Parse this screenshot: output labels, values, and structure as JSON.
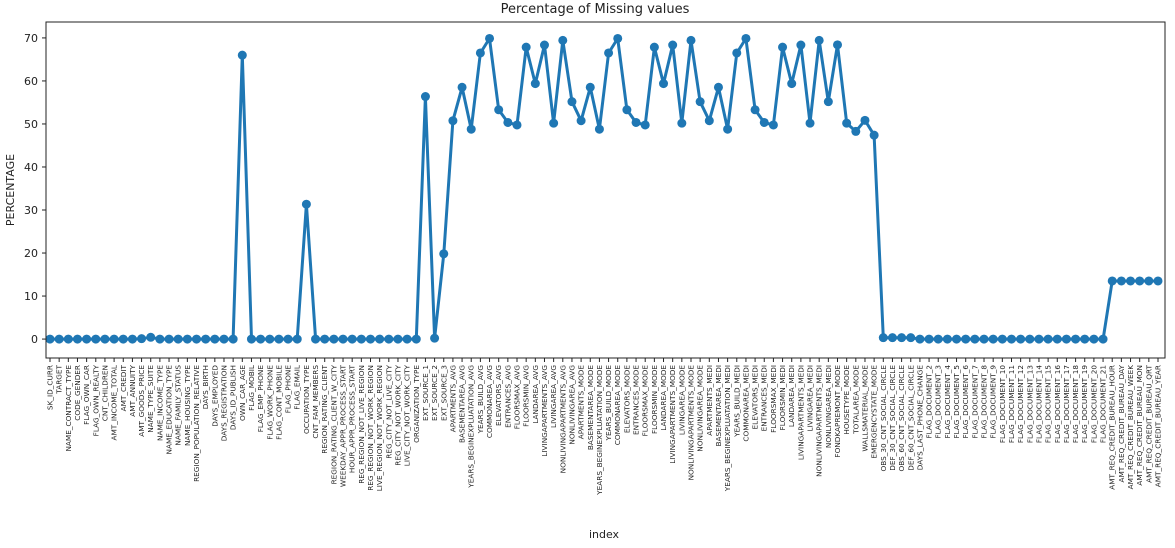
{
  "chart_data": {
    "type": "line",
    "title": "Percentage of Missing values",
    "xlabel": "index",
    "ylabel": "PERCENTAGE",
    "ylim": [
      -4.4,
      73.7
    ],
    "yticks": [
      0,
      10,
      20,
      30,
      40,
      50,
      60,
      70
    ],
    "color": "#1f77b4",
    "categories": [
      "SK_ID_CURR",
      "TARGET",
      "NAME_CONTRACT_TYPE",
      "CODE_GENDER",
      "FLAG_OWN_CAR",
      "FLAG_OWN_REALTY",
      "CNT_CHILDREN",
      "AMT_INCOME_TOTAL",
      "AMT_CREDIT",
      "AMT_ANNUITY",
      "AMT_GOODS_PRICE",
      "NAME_TYPE_SUITE",
      "NAME_INCOME_TYPE",
      "NAME_EDUCATION_TYPE",
      "NAME_FAMILY_STATUS",
      "NAME_HOUSING_TYPE",
      "REGION_POPULATION_RELATIVE",
      "DAYS_BIRTH",
      "DAYS_EMPLOYED",
      "DAYS_REGISTRATION",
      "DAYS_ID_PUBLISH",
      "OWN_CAR_AGE",
      "FLAG_MOBIL",
      "FLAG_EMP_PHONE",
      "FLAG_WORK_PHONE",
      "FLAG_CONT_MOBILE",
      "FLAG_PHONE",
      "FLAG_EMAIL",
      "OCCUPATION_TYPE",
      "CNT_FAM_MEMBERS",
      "REGION_RATING_CLIENT",
      "REGION_RATING_CLIENT_W_CITY",
      "WEEKDAY_APPR_PROCESS_START",
      "HOUR_APPR_PROCESS_START",
      "REG_REGION_NOT_LIVE_REGION",
      "REG_REGION_NOT_WORK_REGION",
      "LIVE_REGION_NOT_WORK_REGION",
      "REG_CITY_NOT_LIVE_CITY",
      "REG_CITY_NOT_WORK_CITY",
      "LIVE_CITY_NOT_WORK_CITY",
      "ORGANIZATION_TYPE",
      "EXT_SOURCE_1",
      "EXT_SOURCE_2",
      "EXT_SOURCE_3",
      "APARTMENTS_AVG",
      "BASEMENTAREA_AVG",
      "YEARS_BEGINEXPLUATATION_AVG",
      "YEARS_BUILD_AVG",
      "COMMONAREA_AVG",
      "ELEVATORS_AVG",
      "ENTRANCES_AVG",
      "FLOORSMAX_AVG",
      "FLOORSMIN_AVG",
      "LANDAREA_AVG",
      "LIVINGAPARTMENTS_AVG",
      "LIVINGAREA_AVG",
      "NONLIVINGAPARTMENTS_AVG",
      "NONLIVINGAREA_AVG",
      "APARTMENTS_MODE",
      "BASEMENTAREA_MODE",
      "YEARS_BEGINEXPLUATATION_MODE",
      "YEARS_BUILD_MODE",
      "COMMONAREA_MODE",
      "ELEVATORS_MODE",
      "ENTRANCES_MODE",
      "FLOORSMAX_MODE",
      "FLOORSMIN_MODE",
      "LANDAREA_MODE",
      "LIVINGAPARTMENTS_MODE",
      "LIVINGAREA_MODE",
      "NONLIVINGAPARTMENTS_MODE",
      "NONLIVINGAREA_MODE",
      "APARTMENTS_MEDI",
      "BASEMENTAREA_MEDI",
      "YEARS_BEGINEXPLUATATION_MEDI",
      "YEARS_BUILD_MEDI",
      "COMMONAREA_MEDI",
      "ELEVATORS_MEDI",
      "ENTRANCES_MEDI",
      "FLOORSMAX_MEDI",
      "FLOORSMIN_MEDI",
      "LANDAREA_MEDI",
      "LIVINGAPARTMENTS_MEDI",
      "LIVINGAREA_MEDI",
      "NONLIVINGAPARTMENTS_MEDI",
      "NONLIVINGAREA_MEDI",
      "FONDKAPREMONT_MODE",
      "HOUSETYPE_MODE",
      "TOTALAREA_MODE",
      "WALLSMATERIAL_MODE",
      "EMERGENCYSTATE_MODE",
      "OBS_30_CNT_SOCIAL_CIRCLE",
      "DEF_30_CNT_SOCIAL_CIRCLE",
      "OBS_60_CNT_SOCIAL_CIRCLE",
      "DEF_60_CNT_SOCIAL_CIRCLE",
      "DAYS_LAST_PHONE_CHANGE",
      "FLAG_DOCUMENT_2",
      "FLAG_DOCUMENT_3",
      "FLAG_DOCUMENT_4",
      "FLAG_DOCUMENT_5",
      "FLAG_DOCUMENT_6",
      "FLAG_DOCUMENT_7",
      "FLAG_DOCUMENT_8",
      "FLAG_DOCUMENT_9",
      "FLAG_DOCUMENT_10",
      "FLAG_DOCUMENT_11",
      "FLAG_DOCUMENT_12",
      "FLAG_DOCUMENT_13",
      "FLAG_DOCUMENT_14",
      "FLAG_DOCUMENT_15",
      "FLAG_DOCUMENT_16",
      "FLAG_DOCUMENT_17",
      "FLAG_DOCUMENT_18",
      "FLAG_DOCUMENT_19",
      "FLAG_DOCUMENT_20",
      "FLAG_DOCUMENT_21",
      "AMT_REQ_CREDIT_BUREAU_HOUR",
      "AMT_REQ_CREDIT_BUREAU_DAY",
      "AMT_REQ_CREDIT_BUREAU_WEEK",
      "AMT_REQ_CREDIT_BUREAU_MON",
      "AMT_REQ_CREDIT_BUREAU_QRT",
      "AMT_REQ_CREDIT_BUREAU_YEAR"
    ],
    "values": [
      0,
      0,
      0,
      0,
      0,
      0,
      0,
      0,
      0,
      0,
      0.09,
      0.42,
      0,
      0,
      0,
      0,
      0,
      0,
      0,
      0,
      0,
      65.99,
      0,
      0,
      0,
      0,
      0,
      0,
      31.35,
      0,
      0,
      0,
      0,
      0,
      0,
      0,
      0,
      0,
      0,
      0,
      0,
      56.38,
      0.21,
      19.83,
      50.75,
      58.52,
      48.78,
      66.5,
      69.87,
      53.3,
      50.35,
      49.76,
      67.85,
      59.38,
      68.35,
      50.19,
      69.43,
      55.18,
      50.75,
      58.52,
      48.78,
      66.5,
      69.87,
      53.3,
      50.35,
      49.76,
      67.85,
      59.38,
      68.35,
      50.19,
      69.43,
      55.18,
      50.75,
      58.52,
      48.78,
      66.5,
      69.87,
      53.3,
      50.35,
      49.76,
      67.85,
      59.38,
      68.35,
      50.19,
      69.43,
      55.18,
      68.39,
      50.18,
      48.27,
      50.84,
      47.4,
      0.33,
      0.33,
      0.33,
      0.33,
      0,
      0,
      0,
      0,
      0,
      0,
      0,
      0,
      0,
      0,
      0,
      0,
      0,
      0,
      0,
      0,
      0,
      0,
      0,
      0,
      0,
      13.5,
      13.5,
      13.5,
      13.5,
      13.5,
      13.5
    ]
  }
}
